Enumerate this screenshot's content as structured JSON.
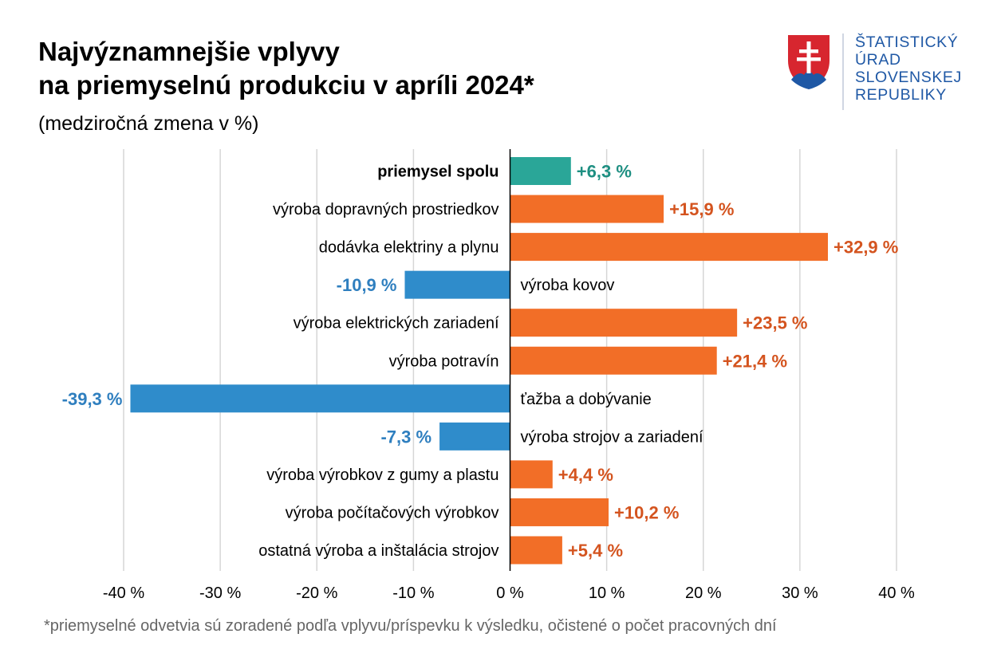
{
  "header": {
    "title_line1": "Najvýznamnejšie vplyvy",
    "title_line2": "na priemyselnú produkciu v apríli 2024*",
    "subtitle": "(medziročná zmena v %)"
  },
  "logo": {
    "line1": "ŠTATISTICKÝ",
    "line2": "ÚRAD",
    "line3": "SLOVENSKEJ",
    "line4": "REPUBLIKY"
  },
  "footnote": "*priemyselné odvetvia sú zoradené podľa vplyvu/príspevku k výsledku, očistené o počet pracovných dní",
  "colors": {
    "total": "#2aa698",
    "positive_bar": "#f26e27",
    "positive_label": "#d4541f",
    "negative_bar": "#2f8ccb",
    "negative_label": "#2f7fbf",
    "total_label": "#1e8f82",
    "grid": "#d6d6d6",
    "logo_blue": "#1f58a5"
  },
  "chart_data": {
    "type": "bar",
    "orientation": "horizontal",
    "xlim": [
      -40,
      40
    ],
    "x_ticks": [
      -40,
      -30,
      -20,
      -10,
      0,
      10,
      20,
      30,
      40
    ],
    "x_tick_labels": [
      "-40 %",
      "-30 %",
      "-20 %",
      "-10 %",
      "0 %",
      "10 %",
      "20 %",
      "30 %",
      "40 %"
    ],
    "grid": true,
    "categories": [
      "priemysel spolu",
      "výroba dopravných prostriedkov",
      "dodávka elektriny a plynu",
      "výroba kovov",
      "výroba elektrických zariadení",
      "výroba potravín",
      "ťažba a dobývanie",
      "výroba strojov a zariadení",
      "výroba výrobkov z gumy a plastu",
      "výroba počítačových výrobkov",
      "ostatná výroba a inštalácia strojov"
    ],
    "values": [
      6.3,
      15.9,
      32.9,
      -10.9,
      23.5,
      21.4,
      -39.3,
      -7.3,
      4.4,
      10.2,
      5.4
    ],
    "value_labels": [
      "+6,3 %",
      "+15,9 %",
      "+32,9 %",
      "-10,9 %",
      "+23,5 %",
      "+21,4 %",
      "-39,3 %",
      "-7,3 %",
      "+4,4 %",
      "+10,2 %",
      "+5,4 %"
    ],
    "highlight_category": "priemysel spolu"
  }
}
